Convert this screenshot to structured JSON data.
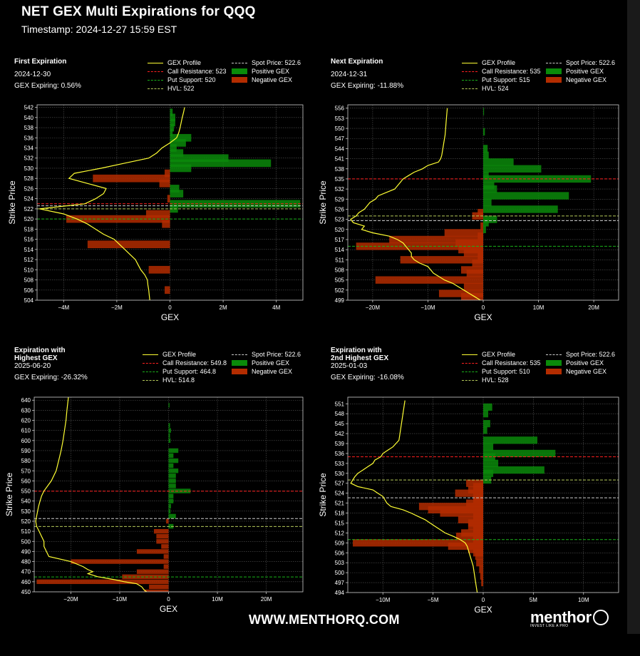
{
  "title": "NET GEX Multi Expirations for QQQ",
  "timestamp": "Timestamp: 2024-12-27 15:59 EST",
  "footer_url": "WWW.MENTHORQ.COM",
  "brand": {
    "name": "menthor",
    "tagline": "INVEST LIKE A PRO"
  },
  "colors": {
    "profile": "#ffff33",
    "positive": "#0a8a0a",
    "negative": "#b32c00",
    "call": "#ff2020",
    "put": "#1ab01a",
    "hvl": "#b5c95a",
    "spot": "#cccccc",
    "grid": "#555555",
    "axes": "#cccccc"
  },
  "legend_labels": {
    "profile": "GEX Profile",
    "positive": "Positive GEX",
    "negative": "Negative GEX"
  },
  "panels": [
    {
      "title": "First Expiration",
      "date": "2024-12-30",
      "expiring": "GEX Expiring: 0.56%",
      "legend": {
        "call": "Call Resistance: 523",
        "put": "Put Support: 520",
        "hvl": "HVL: 522",
        "spot": "Spot Price: 522.6"
      },
      "chart_data": {
        "type": "bar",
        "orientation": "horizontal",
        "xlabel": "GEX",
        "ylabel": "Strike Price",
        "xlim": [
          -5000000,
          5000000
        ],
        "ylim": [
          504,
          542.5
        ],
        "xticks": [
          -4000000,
          -2000000,
          0,
          2000000,
          4000000
        ],
        "xtick_labels": [
          "−4M",
          "−2M",
          "0",
          "2M",
          "4M"
        ],
        "yticks": [
          504,
          506,
          508,
          510,
          512,
          514,
          516,
          518,
          520,
          522,
          524,
          526,
          528,
          530,
          532,
          534,
          536,
          538,
          540,
          542
        ],
        "bar_height": 1.5,
        "strikes": [
          541,
          540,
          539,
          538,
          537,
          536,
          535,
          534,
          533,
          532,
          531,
          530,
          529,
          528,
          527,
          526,
          525,
          524,
          523,
          522,
          521,
          520,
          519,
          515,
          510,
          506
        ],
        "values": [
          100000,
          200000,
          200000,
          150000,
          100000,
          800000,
          600000,
          250000,
          500000,
          2200000,
          3800000,
          800000,
          -200000,
          -2900000,
          -400000,
          350000,
          500000,
          -100000,
          4900000,
          300000,
          -900000,
          -3900000,
          -300000,
          -3100000,
          -800000,
          -200000
        ],
        "profile": {
          "y": [
            542,
            541,
            540,
            539,
            538,
            537,
            536,
            535,
            534,
            533,
            532,
            531,
            530,
            529,
            528,
            527,
            526,
            525,
            524,
            523,
            522,
            521,
            520,
            519,
            518,
            517,
            516,
            515,
            514,
            513,
            512,
            511,
            510,
            509,
            508,
            507,
            506,
            505,
            504
          ],
          "x": [
            550000,
            510000,
            460000,
            420000,
            380000,
            330000,
            250000,
            0,
            -300000,
            -500000,
            -800000,
            -1700000,
            -2600000,
            -3600000,
            -3800000,
            -3100000,
            -2400000,
            -2500000,
            -2800000,
            -3200000,
            -4900000,
            -4000000,
            -3500000,
            -3100000,
            -2800000,
            -2500000,
            -2100000,
            -1900000,
            -1700000,
            -1500000,
            -1300000,
            -1200000,
            -1100000,
            -950000,
            -850000,
            -830000,
            -800000,
            -780000,
            -760000
          ]
        },
        "levels": {
          "call": 523,
          "put": 520,
          "hvl": 522,
          "spot": 522.6
        }
      }
    },
    {
      "title": "Next Expiration",
      "date": "2024-12-31",
      "expiring": "GEX Expiring: -11.88%",
      "legend": {
        "call": "Call Resistance: 535",
        "put": "Put Support: 515",
        "hvl": "HVL: 524",
        "spot": "Spot Price: 522.6"
      },
      "chart_data": {
        "type": "bar",
        "orientation": "horizontal",
        "xlabel": "GEX",
        "ylabel": "Strike Price",
        "xlim": [
          -24500000,
          24500000
        ],
        "ylim": [
          499,
          557
        ],
        "xticks": [
          -20000000,
          -10000000,
          0,
          10000000,
          20000000
        ],
        "xtick_labels": [
          "−20M",
          "−10M",
          "0",
          "10M",
          "20M"
        ],
        "yticks": [
          499,
          502,
          505,
          508,
          511,
          514,
          517,
          520,
          523,
          526,
          529,
          532,
          535,
          538,
          541,
          544,
          547,
          550,
          553,
          556
        ],
        "bar_height": 2.2,
        "strikes": [
          555,
          549,
          544,
          542,
          540,
          538,
          536,
          535,
          533,
          532,
          530,
          528,
          526,
          525,
          524,
          523,
          522,
          521,
          520,
          519,
          518,
          517,
          516,
          515,
          514,
          513,
          512,
          511,
          510,
          508,
          507,
          505,
          503,
          501,
          500
        ],
        "values": [
          150000,
          300000,
          800000,
          1000000,
          5500000,
          10500000,
          1000000,
          19500000,
          2000000,
          2500000,
          15500000,
          1500000,
          13500000,
          -1000000,
          -2000000,
          2500000,
          1000000,
          -500000,
          500000,
          -7000000,
          -1000000,
          -17000000,
          -5000000,
          -23000000,
          -4500000,
          -3500000,
          -1000000,
          -15000000,
          -2000000,
          -4000000,
          -3000000,
          -19500000,
          -3500000,
          -8000000,
          -4000000
        ],
        "profile": {
          "y": [
            556,
            554,
            552,
            550,
            548,
            546,
            544,
            542,
            541,
            540,
            539,
            538,
            537,
            536,
            535,
            534,
            533,
            532,
            531,
            530,
            529,
            528,
            527,
            526,
            525,
            524,
            523,
            522,
            521,
            520,
            519,
            518,
            517,
            516,
            515,
            514,
            513,
            512,
            511,
            510,
            509,
            508,
            507,
            506,
            505,
            504,
            503,
            502,
            501,
            500,
            499
          ],
          "x": [
            -6500000,
            -6600000,
            -6700000,
            -6800000,
            -6900000,
            -7100000,
            -7300000,
            -7500000,
            -7700000,
            -8100000,
            -10000000,
            -11000000,
            -12500000,
            -13500000,
            -14500000,
            -15000000,
            -15500000,
            -16000000,
            -17500000,
            -19000000,
            -19500000,
            -20500000,
            -21000000,
            -21500000,
            -22500000,
            -23000000,
            -24000000,
            -23500000,
            -21500000,
            -22000000,
            -20000000,
            -17000000,
            -15500000,
            -14500000,
            -14000000,
            -13500000,
            -13000000,
            -13000000,
            -12500000,
            -11500000,
            -10000000,
            -9500000,
            -9000000,
            -8000000,
            -7000000,
            -5500000,
            -4500000,
            -3500000,
            -2500000,
            -1500000,
            -500000
          ]
        },
        "levels": {
          "call": 535,
          "put": 515,
          "hvl": 524,
          "spot": 522.6
        }
      }
    },
    {
      "title": "Expiration with\nHighest GEX",
      "date": "2025-06-20",
      "expiring": "GEX Expiring: -26.32%",
      "legend": {
        "call": "Call Resistance: 549.8",
        "put": "Put Support: 464.8",
        "hvl": "HVL: 514.8",
        "spot": "Spot Price: 522.6"
      },
      "chart_data": {
        "type": "bar",
        "orientation": "horizontal",
        "xlabel": "GEX",
        "ylabel": "Strike Price",
        "xlim": [
          -27500000,
          27500000
        ],
        "ylim": [
          450,
          643
        ],
        "xticks": [
          -20000000,
          -10000000,
          0,
          10000000,
          20000000
        ],
        "xtick_labels": [
          "−20M",
          "−10M",
          "0",
          "10M",
          "20M"
        ],
        "yticks": [
          450,
          460,
          470,
          480,
          490,
          500,
          510,
          520,
          530,
          540,
          550,
          560,
          570,
          580,
          590,
          600,
          610,
          620,
          630,
          640
        ],
        "bar_height": 4.5,
        "strikes": [
          635,
          615,
          610,
          605,
          600,
          590,
          585,
          580,
          575,
          570,
          565,
          560,
          555,
          550,
          545,
          540,
          535,
          530,
          525,
          520,
          515,
          510,
          505,
          500,
          495,
          490,
          485,
          480,
          475,
          470,
          465,
          460,
          455,
          450
        ],
        "values": [
          200000,
          300000,
          500000,
          300000,
          400000,
          2000000,
          1000000,
          2000000,
          1000000,
          2000000,
          1500000,
          1500000,
          1500000,
          4500000,
          1000000,
          1000000,
          500000,
          400000,
          1500000,
          -500000,
          1000000,
          -3000000,
          -2500000,
          -2500000,
          -1500000,
          -6500000,
          -1000000,
          -20000000,
          -1000000,
          -6500000,
          -9500000,
          -27000000,
          -4000000,
          -5000000
        ],
        "profile": {
          "y": [
            643,
            630,
            620,
            610,
            600,
            590,
            580,
            570,
            560,
            550,
            545,
            540,
            535,
            530,
            525,
            520,
            515,
            510,
            505,
            500,
            495,
            490,
            485,
            480,
            475,
            472,
            470,
            468,
            465,
            462,
            460,
            458,
            455,
            452,
            450
          ],
          "x": [
            -20500000,
            -20800000,
            -21000000,
            -21300000,
            -21600000,
            -22000000,
            -22500000,
            -23000000,
            -24000000,
            -25500000,
            -26000000,
            -26300000,
            -26600000,
            -26800000,
            -27000000,
            -27200000,
            -27000000,
            -26500000,
            -26000000,
            -25500000,
            -25500000,
            -25000000,
            -24500000,
            -20000000,
            -17500000,
            -16500000,
            -15500000,
            -16500000,
            -14500000,
            -11000000,
            -9000000,
            -6500000,
            -5500000,
            -5000000,
            -4500000
          ]
        },
        "levels": {
          "call": 549.8,
          "put": 464.8,
          "hvl": 514.8,
          "spot": 522.6
        }
      }
    },
    {
      "title": "Expiration with\n2nd Highest GEX",
      "date": "2025-01-03",
      "expiring": "GEX Expiring: -16.08%",
      "legend": {
        "call": "Call Resistance: 535",
        "put": "Put Support: 510",
        "hvl": "HVL: 528",
        "spot": "Spot Price: 522.6"
      },
      "chart_data": {
        "type": "bar",
        "orientation": "horizontal",
        "xlabel": "GEX",
        "ylabel": "Strike Price",
        "xlim": [
          -13500000,
          13500000
        ],
        "ylim": [
          494,
          553
        ],
        "xticks": [
          -10000000,
          -5000000,
          0,
          5000000,
          10000000
        ],
        "xtick_labels": [
          "−10M",
          "−5M",
          "0",
          "5M",
          "10M"
        ],
        "yticks": [
          494,
          497,
          500,
          503,
          506,
          509,
          512,
          515,
          518,
          521,
          524,
          527,
          530,
          533,
          536,
          539,
          542,
          545,
          548,
          551
        ],
        "bar_height": 2.2,
        "strikes": [
          550,
          548,
          545,
          543,
          540,
          538,
          536,
          535,
          533,
          531,
          530,
          528,
          527,
          526,
          525,
          524,
          523,
          522,
          521,
          520,
          519,
          518,
          517,
          516,
          515,
          514,
          513,
          512,
          511,
          510,
          509,
          508,
          507,
          506,
          505,
          503,
          501,
          499,
          497
        ],
        "values": [
          900000,
          500000,
          700000,
          400000,
          5400000,
          1000000,
          7200000,
          1200000,
          1500000,
          6100000,
          1000000,
          800000,
          -1700000,
          -1000000,
          -1500000,
          -2800000,
          -1000000,
          -1000000,
          -1700000,
          -6400000,
          -5500000,
          -4300000,
          -1000000,
          -2500000,
          -1500000,
          -1500000,
          -1000000,
          -2200000,
          -2700000,
          -1000000,
          -13000000,
          -3500000,
          -1500000,
          -1000000,
          -800000,
          -700000,
          -400000,
          -300000,
          -200000
        ],
        "profile": {
          "y": [
            552,
            550,
            548,
            546,
            544,
            542,
            540,
            538,
            537,
            536,
            535,
            534,
            533,
            532,
            531,
            530,
            529,
            528,
            527,
            526,
            525,
            524,
            523,
            522,
            521,
            520,
            519,
            518,
            517,
            516,
            515,
            514,
            513,
            512,
            511,
            510,
            509,
            508,
            507,
            506,
            505,
            504,
            503,
            502,
            500,
            498,
            496,
            494
          ],
          "x": [
            -7800000,
            -7900000,
            -8000000,
            -8100000,
            -8200000,
            -8300000,
            -8400000,
            -9000000,
            -9500000,
            -10000000,
            -10200000,
            -10800000,
            -11000000,
            -11500000,
            -12000000,
            -12500000,
            -12800000,
            -13000000,
            -13200000,
            -12500000,
            -11000000,
            -10500000,
            -10000000,
            -9800000,
            -9600000,
            -9200000,
            -8000000,
            -7200000,
            -6500000,
            -5800000,
            -5300000,
            -4800000,
            -4300000,
            -3800000,
            -3000000,
            -2300000,
            -1800000,
            -1600000,
            -1500000,
            -1400000,
            -1300000,
            -1200000,
            -1100000,
            -1000000,
            -900000,
            -800000,
            -700000,
            -600000
          ]
        },
        "levels": {
          "call": 535,
          "put": 510,
          "hvl": 528,
          "spot": 522.6
        }
      }
    }
  ]
}
